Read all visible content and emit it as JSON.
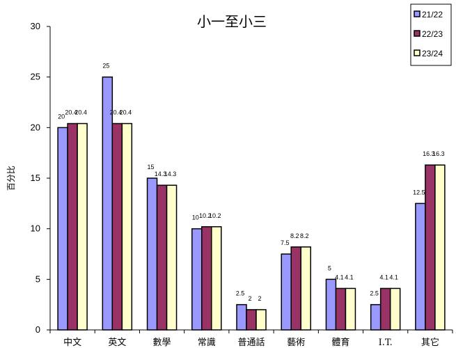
{
  "chart_data": {
    "type": "bar",
    "title": "小一至小三",
    "xlabel": "",
    "ylabel": "百分比",
    "ylim": [
      0,
      30
    ],
    "yticks": [
      0,
      5,
      10,
      15,
      20,
      25,
      30
    ],
    "grid": false,
    "legend_position": "top-right",
    "categories": [
      "中文",
      "英文",
      "數學",
      "常識",
      "普通話",
      "藝術",
      "體育",
      "I.T.",
      "其它"
    ],
    "series": [
      {
        "name": "21/22",
        "color": "#9999ff",
        "values": [
          20,
          25,
          15,
          10,
          2.5,
          7.5,
          5,
          2.5,
          12.5
        ]
      },
      {
        "name": "22/23",
        "color": "#993366",
        "values": [
          20.4,
          20.4,
          14.3,
          10.2,
          2,
          8.2,
          4.1,
          4.1,
          16.3
        ]
      },
      {
        "name": "23/24",
        "color": "#ffffcc",
        "values": [
          20.4,
          20.4,
          14.3,
          10.2,
          2,
          8.2,
          4.1,
          4.1,
          16.3
        ]
      }
    ]
  }
}
